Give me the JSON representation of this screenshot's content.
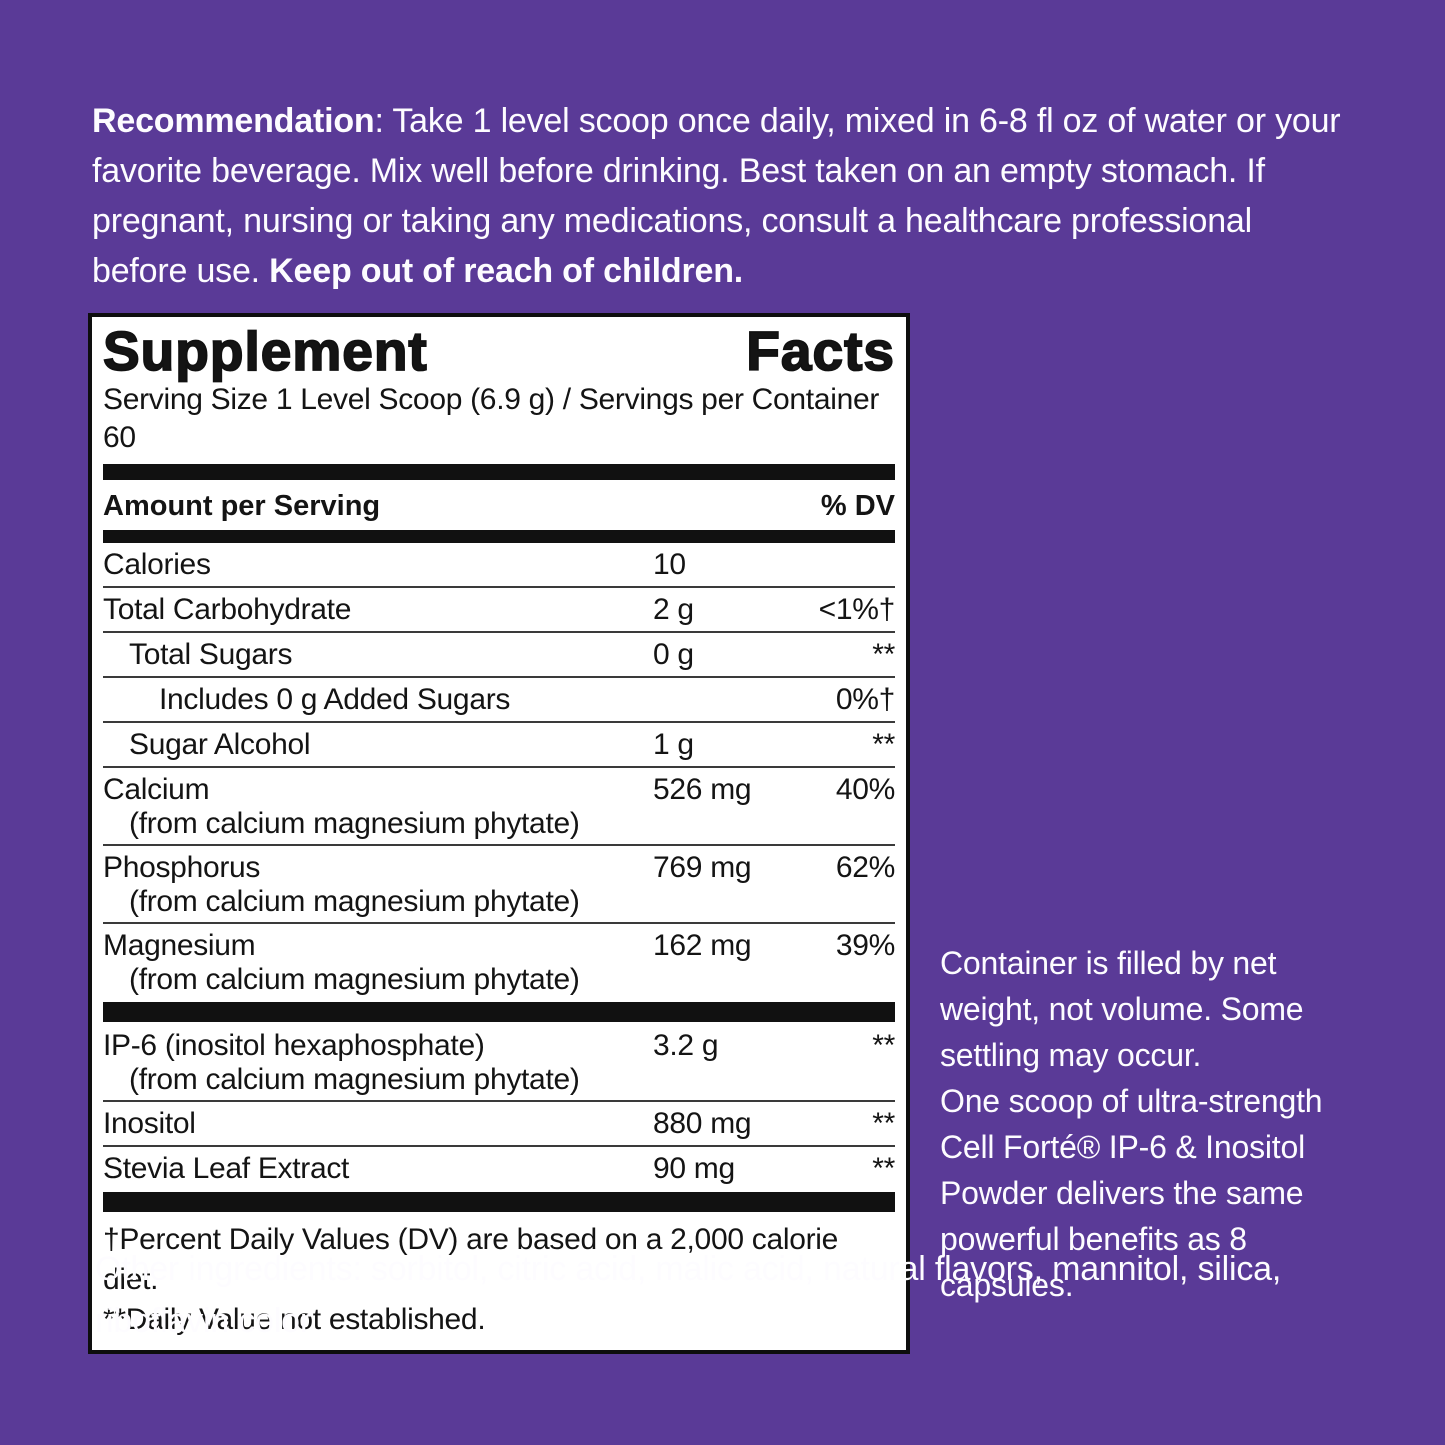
{
  "colors": {
    "background_purple": "#5a3a97",
    "panel_white": "#ffffff",
    "ink_black": "#111111"
  },
  "recommendation": {
    "label": "Recommendation",
    "body": ": Take 1 level scoop once daily, mixed in 6-8 fl oz of water or your favorite beverage. Mix well before drinking. Best taken on an empty stomach. If pregnant, nursing or taking any medications, consult a healthcare professional before use. ",
    "bold_tail": "Keep out of reach of children."
  },
  "panel": {
    "title": "Supplement Facts",
    "serving_line": "Serving Size 1 Level Scoop (6.9 g) / Servings per Container 60",
    "header": {
      "amount_label": "Amount per Serving",
      "dv_label": "% DV"
    },
    "rows": [
      {
        "name": "Calories",
        "amount": "10",
        "dv": "",
        "indent": 0
      },
      {
        "name": "Total Carbohydrate",
        "amount": "2 g",
        "dv": "<1%†",
        "indent": 0
      },
      {
        "name": "Total Sugars",
        "amount": "0 g",
        "dv": "**",
        "indent": 1
      },
      {
        "name": "Includes 0 g Added Sugars",
        "amount": "",
        "dv": "0%†",
        "indent": 2
      },
      {
        "name": "Sugar Alcohol",
        "amount": "1 g",
        "dv": "**",
        "indent": 1
      },
      {
        "name": "Calcium",
        "sub": "(from calcium magnesium phytate)",
        "amount": "526 mg",
        "dv": "40%",
        "indent": 0
      },
      {
        "name": "Phosphorus",
        "sub": "(from calcium magnesium phytate)",
        "amount": "769 mg",
        "dv": "62%",
        "indent": 0
      },
      {
        "name": "Magnesium",
        "sub": "(from calcium magnesium phytate)",
        "amount": "162 mg",
        "dv": "39%",
        "indent": 0,
        "bar_after": true
      },
      {
        "name": "IP-6 (inositol hexaphosphate)",
        "sub": "(from calcium magnesium phytate)",
        "amount": "3.2 g",
        "dv": "**",
        "indent": 0
      },
      {
        "name": "Inositol",
        "amount": "880 mg",
        "dv": "**",
        "indent": 0
      },
      {
        "name": "Stevia Leaf Extract",
        "amount": "90 mg",
        "dv": "**",
        "indent": 0,
        "bar_after": true
      }
    ],
    "footnotes": [
      "†Percent Daily Values (DV) are based on a 2,000 calorie diet.",
      "**Daily Value not established."
    ]
  },
  "side_note": {
    "para1": "Container is filled by net weight, not volume. Some settling may occur.",
    "para2": "One scoop of ultra-strength Cell Forté® IP-6 & Inositol Powder delivers the same powerful benefits as 8 capsules."
  },
  "other_ingredients": {
    "text": "Other ingredients: sorbitol, citric acid, malic acid, natural flavors, mannitol, silica, riboflavin color"
  }
}
